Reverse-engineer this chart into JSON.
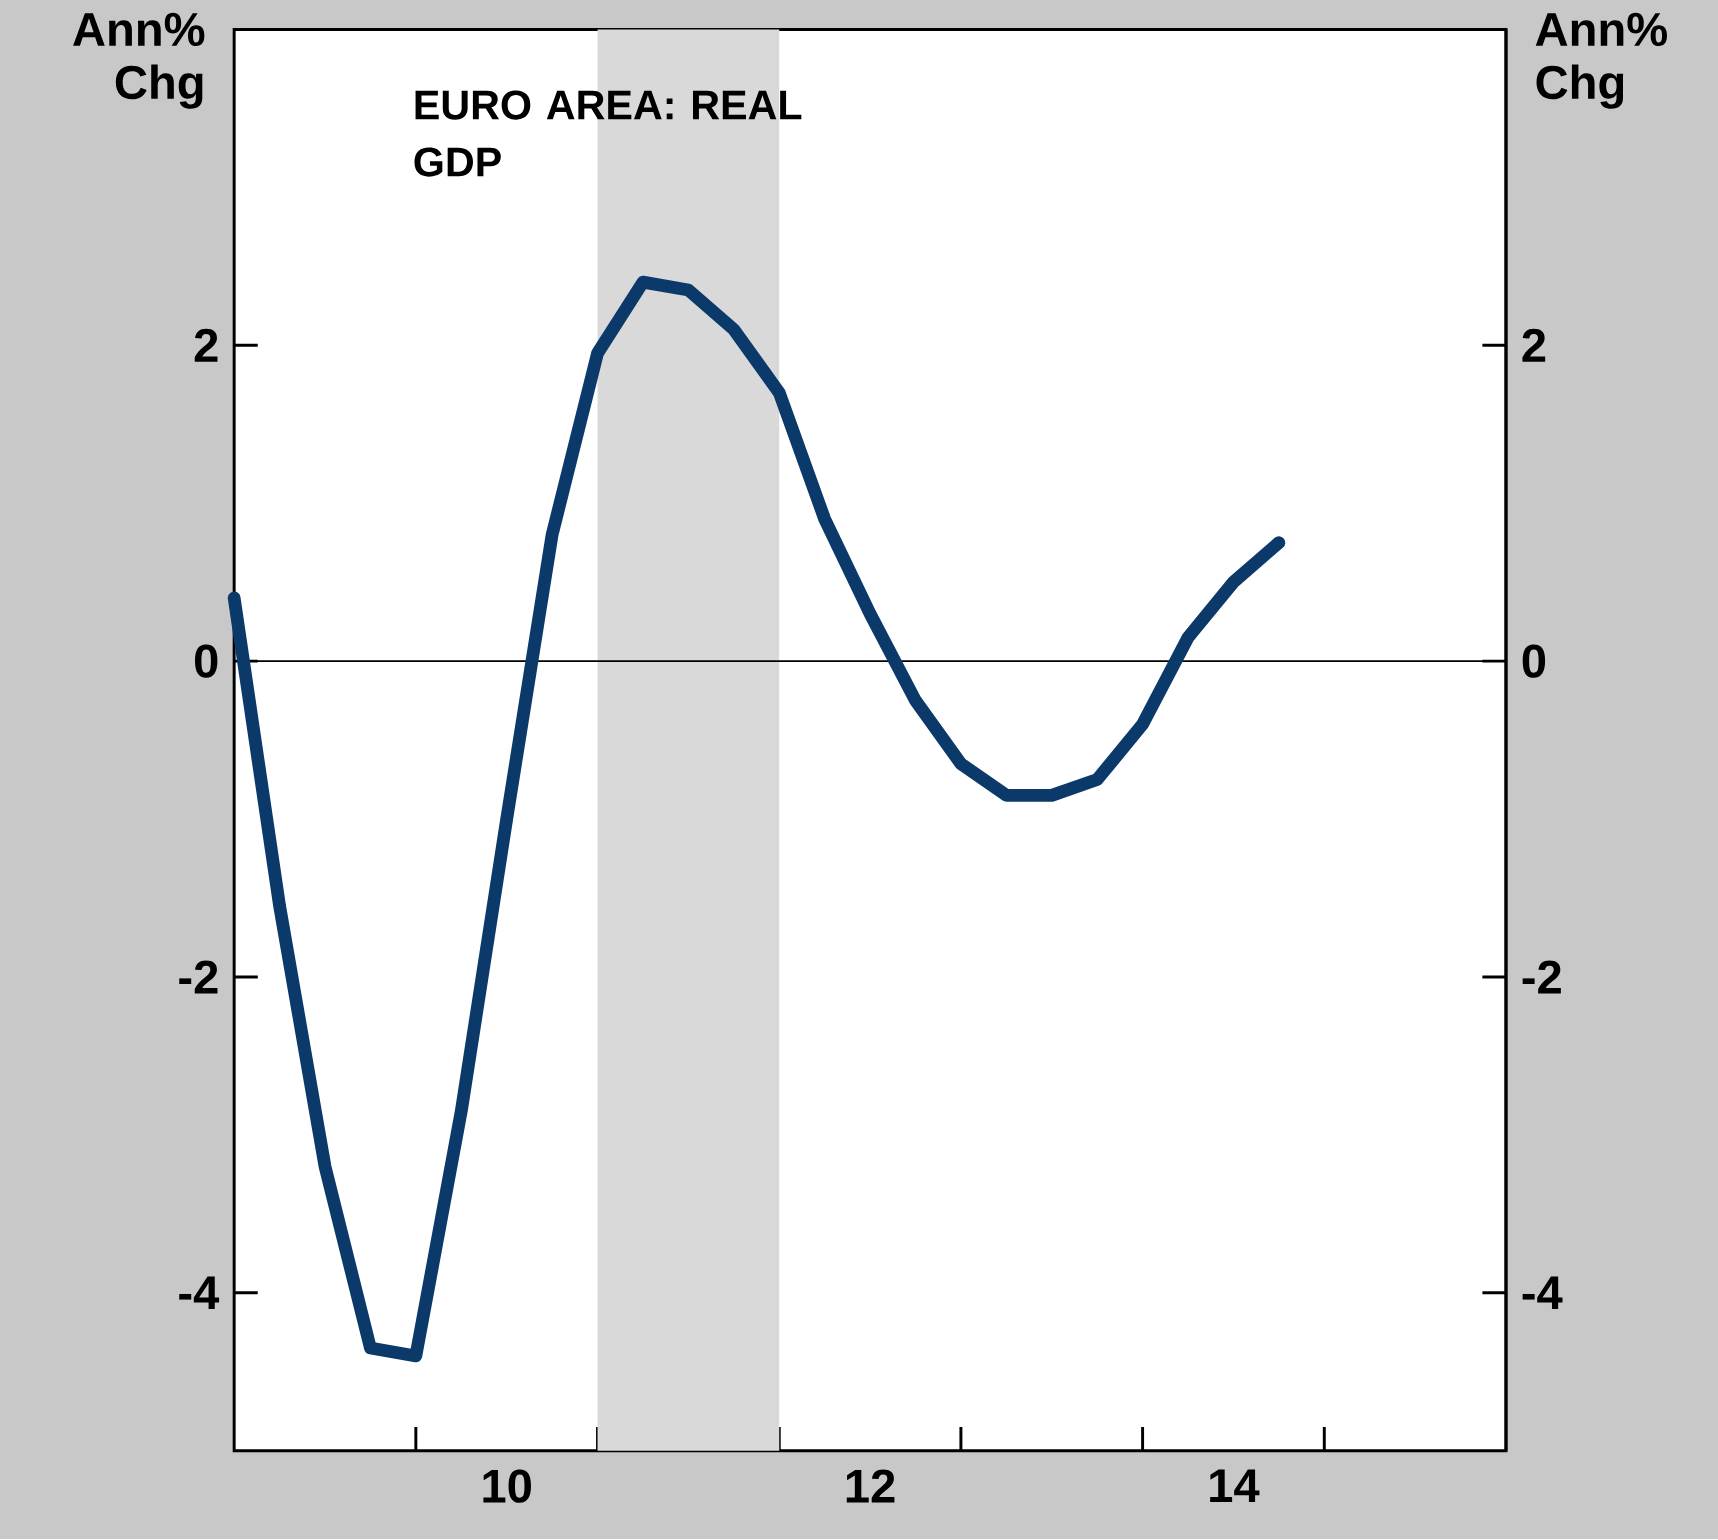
{
  "chart_data": {
    "type": "line",
    "title": "EURO AREA: REAL GDP",
    "ylabel": "Ann% Chg",
    "y2label": "Ann% Chg",
    "x": [
      8.5,
      8.75,
      9.0,
      9.25,
      9.5,
      9.75,
      10.0,
      10.25,
      10.5,
      10.75,
      11.0,
      11.25,
      11.5,
      11.75,
      12.0,
      12.25,
      12.5,
      12.75,
      13.0,
      13.25,
      13.5,
      13.75,
      14.0,
      14.25
    ],
    "series": [
      {
        "color": "#0b3a6a",
        "values": [
          0.4,
          -1.55,
          -3.2,
          -4.35,
          -4.4,
          -2.85,
          -1.0,
          0.8,
          1.95,
          2.4,
          2.35,
          2.1,
          1.7,
          0.9,
          0.3,
          -0.25,
          -0.65,
          -0.85,
          -0.85,
          -0.75,
          -0.4,
          0.15,
          0.5,
          0.75
        ]
      }
    ],
    "xlim": [
      8.5,
      15.5
    ],
    "xticks": [
      {
        "value": 9.5,
        "label": null
      },
      10,
      {
        "value": 10.5,
        "label": null
      },
      {
        "value": 11.5,
        "label": null
      },
      12,
      {
        "value": 12.5,
        "label": null
      },
      {
        "value": 13.5,
        "label": null
      },
      14,
      {
        "value": 14.5,
        "label": null
      }
    ],
    "ylim": [
      -5,
      4
    ],
    "yticks": [
      -4,
      -2,
      0,
      2
    ],
    "y2lim": [
      -5,
      4
    ],
    "y2ticks": [
      -4,
      -2,
      0,
      2
    ],
    "ref_lines": [
      {
        "axis": "y",
        "value": 0,
        "color": "#000000"
      }
    ],
    "bands": [
      {
        "axis": "x",
        "from": 10.5,
        "to": 11.5,
        "color": "#d9d9d9"
      }
    ],
    "grid": false,
    "marker": "none",
    "line_style": "solid"
  }
}
